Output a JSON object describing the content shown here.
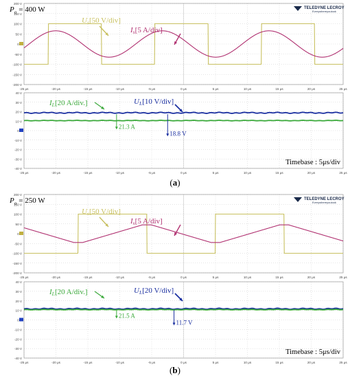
{
  "figure": {
    "panels": [
      {
        "caption": "(a)",
        "power_label": "P",
        "power_sub": "o",
        "power_value": "= 400 W",
        "brand": "TELEDYNE LECROY",
        "brand_tagline": "Everywhereyoulook",
        "timebase": "Timebase : 5μs/div"
      },
      {
        "caption": "(b)",
        "power_label": "P",
        "power_sub": "o",
        "power_value": "= 250 W",
        "brand": "TELEDYNE LECROY",
        "brand_tagline": "Everywhereyoulook",
        "timebase": "Timebase : 5μs/div"
      }
    ]
  },
  "colors": {
    "us": "#c8c060",
    "is": "#b03070",
    "il": "#3caa3c",
    "ul": "#1a2fa0",
    "grid": "#c8c8c8",
    "axis": "#888888"
  },
  "chart_data": [
    {
      "type": "line",
      "panel": "a-top",
      "x_unit": "μs",
      "xlim": [
        -25,
        25
      ],
      "x_ticks": [
        "-25 μs",
        "-20 μs",
        "-15 μs",
        "-10 μs",
        "-5 μs",
        "0 μs",
        "5 μs",
        "10 μs",
        "15 μs",
        "20 μs",
        "25 μs"
      ],
      "ylim": [
        -200,
        200
      ],
      "y_ticks": [
        "200 V",
        "150 V",
        "100 V",
        "50 V",
        "0 V",
        "-50 V",
        "-100 V",
        "-150 V",
        "-200 V"
      ],
      "annotations": [
        {
          "text": "U",
          "sub": "s",
          "rest": "[50 V/div]",
          "series": "us"
        },
        {
          "text": "I",
          "sub": "s",
          "rest": "[5 A/div]",
          "series": "is"
        }
      ],
      "series": [
        {
          "key": "us",
          "kind": "square",
          "period": 16.7,
          "amplitude": 100,
          "phase": -4.5
        },
        {
          "key": "is",
          "kind": "sine",
          "period": 16.7,
          "amplitude": 65,
          "phase": -7.5
        }
      ]
    },
    {
      "type": "line",
      "panel": "a-bottom",
      "x_unit": "μs",
      "xlim": [
        -25,
        25
      ],
      "x_ticks": [
        "-25 μs",
        "-20 μs",
        "-15 μs",
        "-10 μs",
        "-5 μs",
        "0 μs",
        "5 μs",
        "10 μs",
        "15 μs",
        "20 μs",
        "25 μs"
      ],
      "ylim": [
        -40,
        40
      ],
      "y_ticks": [
        "40 V",
        "30 V",
        "20 V",
        "10 V",
        "0 V",
        "-10 V",
        "-20 V",
        "-30 V",
        "-40 V"
      ],
      "annotations": [
        {
          "text": "I",
          "sub": "L",
          "rest": "[20 A/div.]",
          "series": "il"
        },
        {
          "text": "U",
          "sub": "L",
          "rest": "[10 V/div]",
          "series": "ul"
        }
      ],
      "values": [
        {
          "text": "21.3 A",
          "series": "il",
          "x": -10.5
        },
        {
          "text": "18.8 V",
          "series": "ul",
          "x": -2.5
        }
      ],
      "series": [
        {
          "key": "ul",
          "kind": "dc",
          "level": 18.8,
          "ripple": 0.6
        },
        {
          "key": "il",
          "kind": "dc",
          "level": 10.6,
          "ripple": 0.3
        }
      ]
    },
    {
      "type": "line",
      "panel": "b-top",
      "x_unit": "μs",
      "xlim": [
        -25,
        25
      ],
      "x_ticks": [
        "-25 μs",
        "-20 μs",
        "-15 μs",
        "-10 μs",
        "-5 μs",
        "0 μs",
        "5 μs",
        "10 μs",
        "15 μs",
        "20 μs",
        "25 μs"
      ],
      "ylim": [
        -200,
        200
      ],
      "y_ticks": [
        "200 V",
        "150 V",
        "100 V",
        "50 V",
        "0 V",
        "-50 V",
        "-100 V",
        "-150 V",
        "-200 V"
      ],
      "annotations": [
        {
          "text": "U",
          "sub": "s",
          "rest": "[50 V/div]",
          "series": "us"
        },
        {
          "text": "I",
          "sub": "s",
          "rest": "[5 A/div]",
          "series": "is"
        }
      ],
      "series": [
        {
          "key": "us",
          "kind": "square",
          "period": 21.5,
          "amplitude": 100,
          "phase": -16.5
        },
        {
          "key": "is",
          "kind": "triangle",
          "period": 21.5,
          "amplitude": 45,
          "phase": -16.5
        }
      ]
    },
    {
      "type": "line",
      "panel": "b-bottom",
      "x_unit": "μs",
      "xlim": [
        -25,
        25
      ],
      "x_ticks": [
        "-25 μs",
        "-20 μs",
        "-15 μs",
        "-10 μs",
        "-5 μs",
        "0 μs",
        "5 μs",
        "10 μs",
        "15 μs",
        "20 μs",
        "25 μs"
      ],
      "ylim": [
        -40,
        40
      ],
      "y_ticks": [
        "40 V",
        "30 V",
        "20 V",
        "10 V",
        "0 V",
        "-10 V",
        "-20 V",
        "-30 V",
        "-40 V"
      ],
      "annotations": [
        {
          "text": "I",
          "sub": "L",
          "rest": "[20 A/div.]",
          "series": "il"
        },
        {
          "text": "U",
          "sub": "L",
          "rest": "[20 V/div]",
          "series": "ul"
        }
      ],
      "values": [
        {
          "text": "21.5 A",
          "series": "il",
          "x": -10.5
        },
        {
          "text": "11.7 V",
          "series": "ul",
          "x": -1.5
        }
      ],
      "series": [
        {
          "key": "ul",
          "kind": "dc",
          "level": 11.7,
          "ripple": 0.6
        },
        {
          "key": "il",
          "kind": "dc",
          "level": 10.8,
          "ripple": 0.3
        }
      ]
    }
  ]
}
